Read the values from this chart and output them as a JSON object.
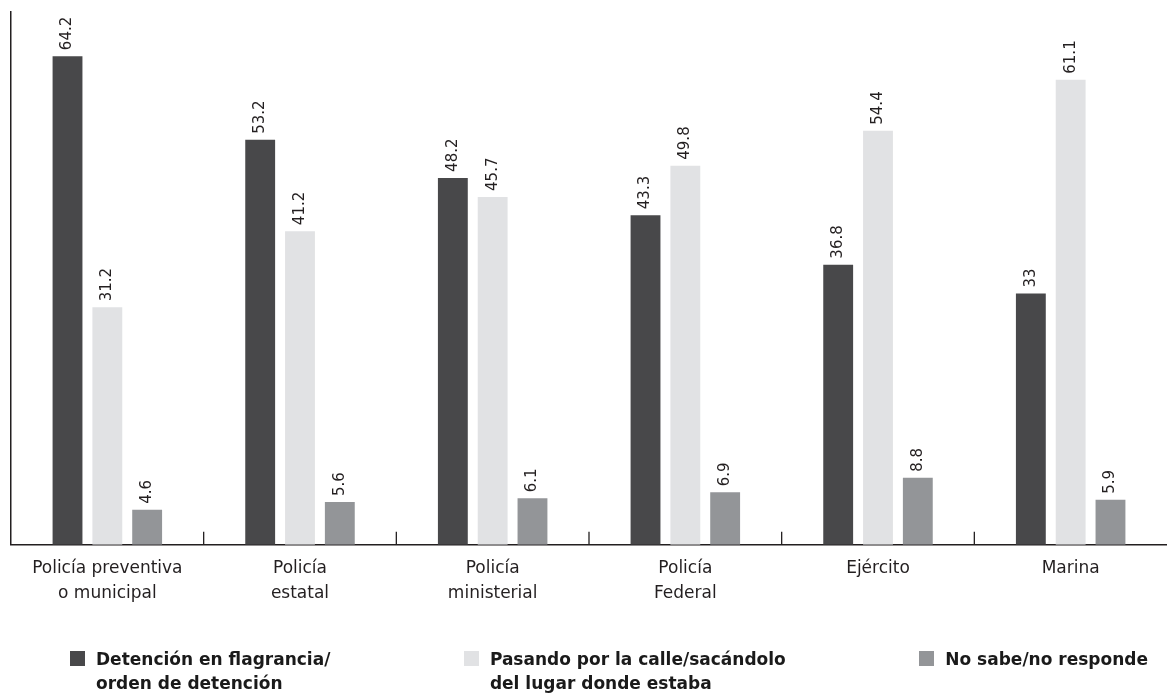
{
  "chart_data": {
    "type": "bar",
    "categories": [
      "Policía preventiva o municipal",
      "Policía estatal",
      "Policía ministerial",
      "Policía Federal",
      "Ejército",
      "Marina"
    ],
    "series": [
      {
        "name": "Detención en flagrancia/orden de detención",
        "color": "#48484a",
        "values": [
          64.2,
          53.2,
          48.2,
          43.3,
          36.8,
          33
        ]
      },
      {
        "name": "Pasando por la calle/sacándolo del lugar donde estaba",
        "color": "#e1e2e4",
        "values": [
          31.2,
          41.2,
          45.7,
          49.8,
          54.4,
          61.1
        ]
      },
      {
        "name": "No sabe/no responde",
        "color": "#939598",
        "values": [
          4.6,
          5.6,
          6.1,
          6.9,
          8.8,
          5.9
        ]
      }
    ],
    "data_labels": true,
    "legend": "bottom",
    "tick_labels": "x"
  }
}
